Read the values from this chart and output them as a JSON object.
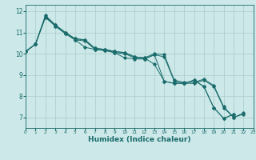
{
  "xlabel": "Humidex (Indice chaleur)",
  "background_color": "#cce8e8",
  "grid_color": "#b0d0d0",
  "line_color": "#1a6b6b",
  "series": [
    [
      10.1,
      10.45,
      11.8,
      11.35,
      11.0,
      10.7,
      10.65,
      10.25,
      10.2,
      10.1,
      10.05,
      9.85,
      9.8,
      10.0,
      9.95,
      8.75,
      8.65,
      8.65,
      8.8,
      8.5,
      7.5,
      7.0,
      7.2
    ],
    [
      10.1,
      10.45,
      11.7,
      11.3,
      10.95,
      10.65,
      10.6,
      10.2,
      10.15,
      10.05,
      10.0,
      9.8,
      9.75,
      9.95,
      9.85,
      8.7,
      8.6,
      8.6,
      8.75,
      8.45,
      7.45,
      7.0,
      7.15
    ],
    [
      10.1,
      10.45,
      11.75,
      11.3,
      10.95,
      10.65,
      10.3,
      10.2,
      10.15,
      10.05,
      9.8,
      9.75,
      9.75,
      9.95,
      8.7,
      8.6,
      8.6,
      8.75,
      8.45,
      7.45,
      6.95,
      7.15,
      null
    ],
    [
      10.1,
      10.45,
      11.75,
      11.35,
      11.0,
      10.7,
      10.65,
      10.25,
      10.2,
      10.1,
      10.05,
      9.85,
      9.8,
      9.5,
      8.7,
      8.6,
      8.6,
      8.75,
      8.45,
      7.45,
      6.95,
      7.15,
      null
    ]
  ],
  "xlim": [
    0,
    23
  ],
  "ylim": [
    6.5,
    12.3
  ],
  "yticks": [
    7,
    8,
    9,
    10,
    11,
    12
  ],
  "xticks": [
    0,
    1,
    2,
    3,
    4,
    5,
    6,
    7,
    8,
    9,
    10,
    11,
    12,
    13,
    14,
    15,
    16,
    17,
    18,
    19,
    20,
    21,
    22,
    23
  ],
  "marker": "D",
  "markersize": 1.8,
  "linewidth": 0.7,
  "xlabel_fontsize": 6.5,
  "xlabel_fontweight": "bold",
  "ytick_fontsize": 5.5,
  "xtick_fontsize": 4.2
}
